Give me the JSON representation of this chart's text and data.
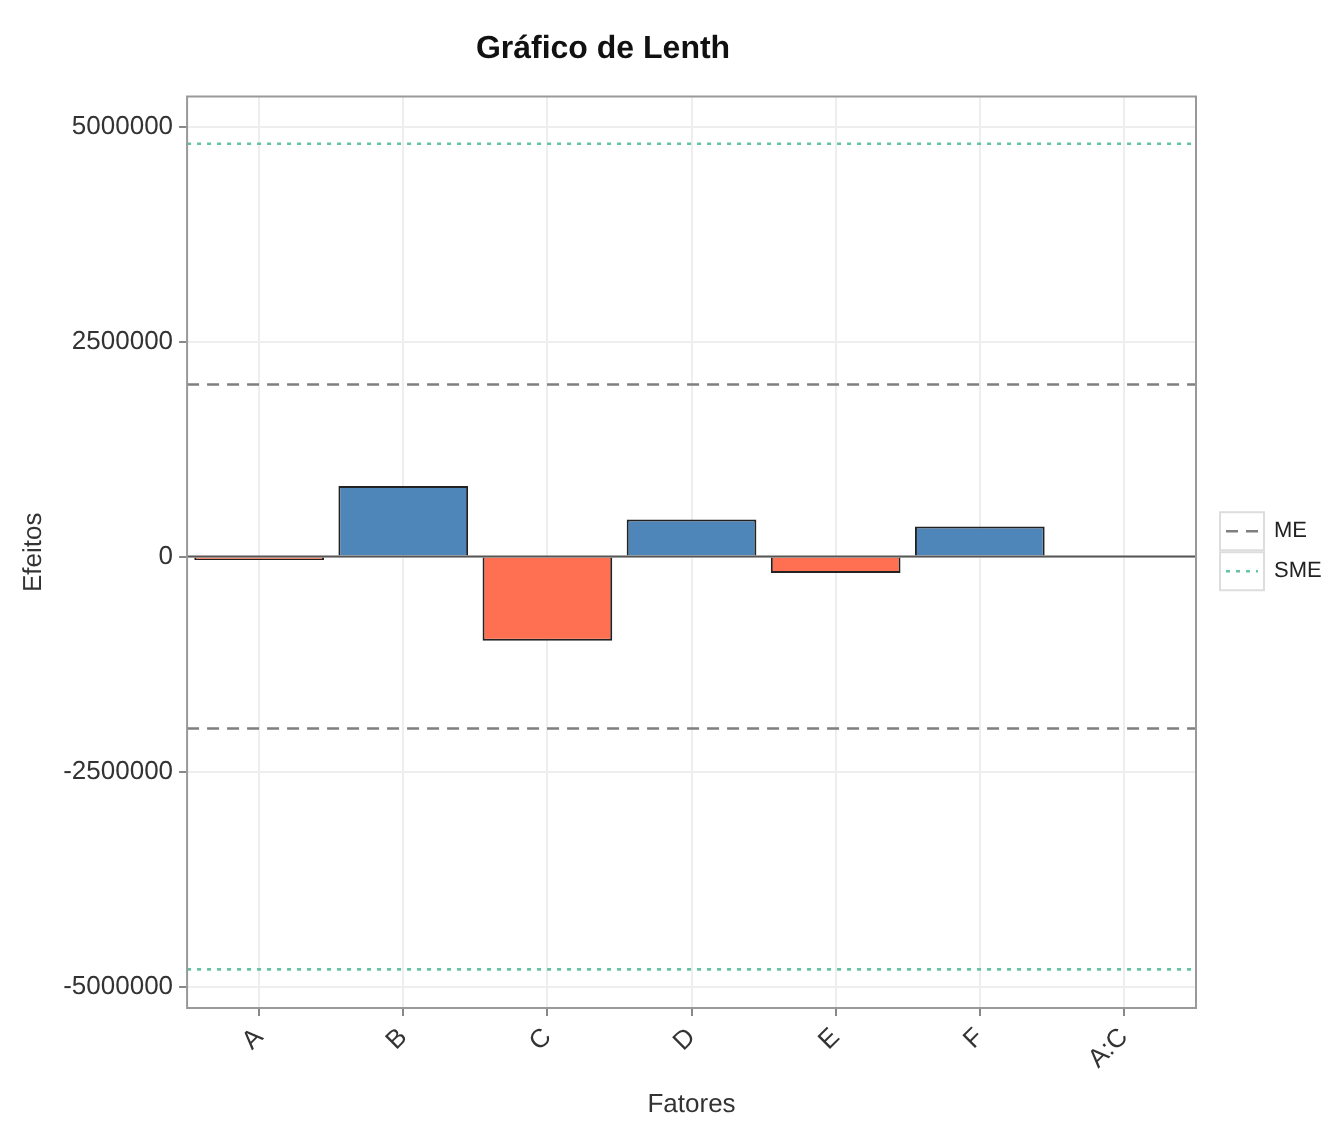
{
  "chart_data": {
    "type": "bar",
    "title": "Gráfico de Lenth",
    "xlabel": "Fatores",
    "ylabel": "Efeitos",
    "categories": [
      "A",
      "B",
      "C",
      "D",
      "E",
      "F",
      "A:C"
    ],
    "values": [
      -40000,
      820000,
      -980000,
      430000,
      -190000,
      350000,
      0
    ],
    "colors": [
      "#ff6f51",
      "#4f86b9",
      "#ff6f51",
      "#4f86b9",
      "#ff6f51",
      "#4f86b9",
      "#4f86b9"
    ],
    "ylim": [
      -5250000,
      5350000
    ],
    "yticks": [
      -5000000,
      -2500000,
      0,
      2500000,
      5000000
    ],
    "grid": true,
    "legend": "right",
    "ref_lines": [
      {
        "axis": "y",
        "value": 2000000,
        "label": "ME",
        "color": "#7f7f7f",
        "line_style": "dashed"
      },
      {
        "axis": "y",
        "value": -2000000,
        "color": "#7f7f7f",
        "line_style": "dashed"
      },
      {
        "axis": "y",
        "value": 4800000,
        "label": "SME",
        "color": "#66c2a5",
        "line_style": "dotted"
      },
      {
        "axis": "y",
        "value": -4800000,
        "color": "#66c2a5",
        "line_style": "dotted"
      }
    ]
  }
}
